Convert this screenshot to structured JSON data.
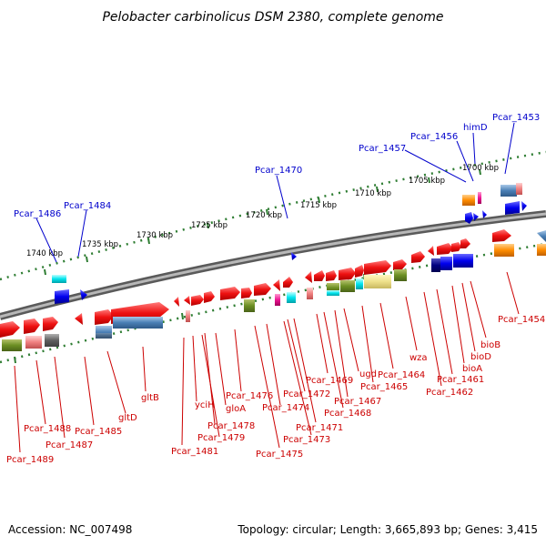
{
  "title": "Pelobacter carbinolicus DSM 2380, complete genome",
  "footer": {
    "accession": "Accession: NC_007498",
    "topology": "Topology: circular; Length: 3,665,893 bp; Genes: 3,415"
  },
  "kbp_ticks": [
    "1740 kbp",
    "1735 kbp",
    "1730 kbp",
    "1725 kbp",
    "1720 kbp",
    "1715 kbp",
    "1710 kbp",
    "1705 kbp",
    "1700 kbp"
  ],
  "top_labels": [
    "Pcar_1486",
    "Pcar_1484",
    "Pcar_1470",
    "Pcar_1457",
    "Pcar_1456",
    "himD",
    "Pcar_1453"
  ],
  "bottom_labels": [
    "Pcar_1489",
    "Pcar_1488",
    "Pcar_1487",
    "Pcar_1485",
    "gltD",
    "gltB",
    "Pcar_1481",
    "yciH",
    "Pcar_1479",
    "Pcar_1478",
    "gloA",
    "Pcar_1476",
    "Pcar_1475",
    "Pcar_1474",
    "Pcar_1473",
    "Pcar_1472",
    "Pcar_1471",
    "Pcar_1469",
    "Pcar_1468",
    "Pcar_1467",
    "ugd",
    "Pcar_1465",
    "Pcar_1464",
    "wza",
    "Pcar_1462",
    "Pcar_1461",
    "bioA",
    "bioD",
    "bioB",
    "Pcar_1454"
  ],
  "colors": {
    "forward_gene": "#ee1111",
    "label_blue": "#0000cc",
    "label_red": "#cc0000",
    "backbone": "#8a8a8a",
    "tick_green": "#2e7d32"
  }
}
